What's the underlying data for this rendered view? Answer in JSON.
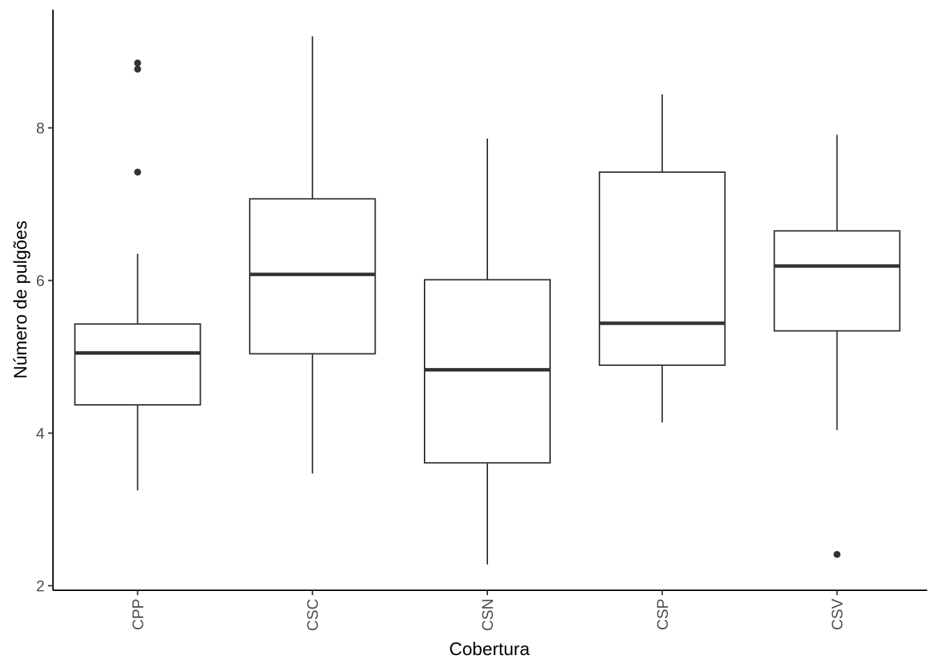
{
  "chart_data": {
    "type": "boxplot",
    "title": "",
    "xlabel": "Cobertura",
    "ylabel": "Número de pulgões",
    "ylim": [
      1.95,
      9.55
    ],
    "yticks": [
      2,
      4,
      6,
      8
    ],
    "grid": false,
    "legend": "none",
    "box_color": "#333333",
    "categories": [
      "CPP",
      "CSC",
      "CSN",
      "CSP",
      "CSV"
    ],
    "boxes": [
      {
        "category": "CPP",
        "whisker_low": 3.25,
        "q1": 4.37,
        "median": 5.05,
        "q3": 5.43,
        "whisker_high": 6.35,
        "outliers": [
          7.42,
          8.77,
          8.85
        ]
      },
      {
        "category": "CSC",
        "whisker_low": 3.47,
        "q1": 5.04,
        "median": 6.08,
        "q3": 7.07,
        "whisker_high": 9.2,
        "outliers": []
      },
      {
        "category": "CSN",
        "whisker_low": 2.28,
        "q1": 3.61,
        "median": 4.83,
        "q3": 6.01,
        "whisker_high": 7.86,
        "outliers": []
      },
      {
        "category": "CSP",
        "whisker_low": 4.14,
        "q1": 4.89,
        "median": 5.44,
        "q3": 7.42,
        "whisker_high": 8.44,
        "outliers": []
      },
      {
        "category": "CSV",
        "whisker_low": 4.04,
        "q1": 5.34,
        "median": 6.19,
        "q3": 6.65,
        "whisker_high": 7.91,
        "outliers": [
          2.41
        ]
      }
    ]
  }
}
